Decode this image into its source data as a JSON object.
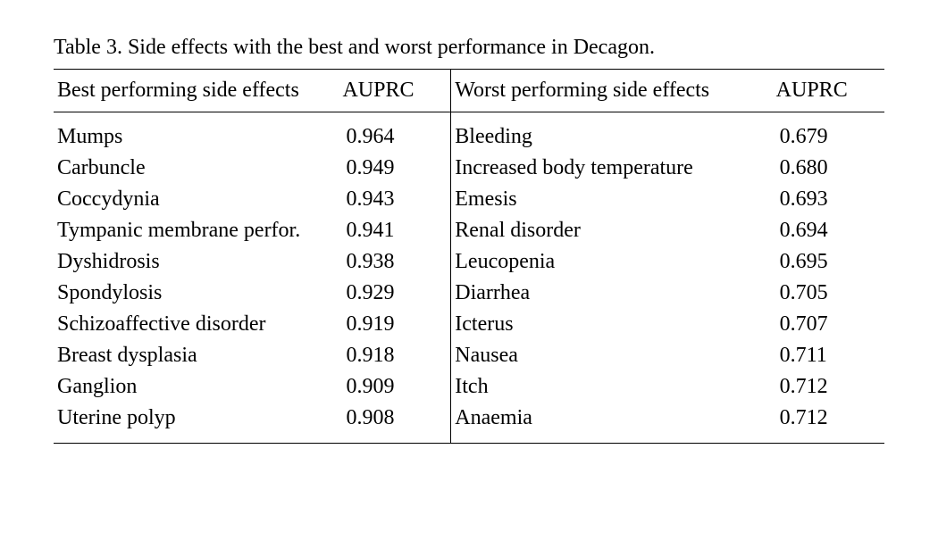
{
  "table": {
    "caption": "Table 3. Side effects with the best and worst performance in Decagon.",
    "headers": {
      "best_label": "Best performing side effects",
      "best_auprc": "AUPRC",
      "worst_label": "Worst performing side effects",
      "worst_auprc": "AUPRC"
    },
    "rows": [
      {
        "best_effect": "Mumps",
        "best_auprc": "0.964",
        "worst_effect": "Bleeding",
        "worst_auprc": "0.679"
      },
      {
        "best_effect": "Carbuncle",
        "best_auprc": "0.949",
        "worst_effect": "Increased body temperature",
        "worst_auprc": "0.680"
      },
      {
        "best_effect": "Coccydynia",
        "best_auprc": "0.943",
        "worst_effect": "Emesis",
        "worst_auprc": "0.693"
      },
      {
        "best_effect": "Tympanic membrane perfor.",
        "best_auprc": "0.941",
        "worst_effect": "Renal disorder",
        "worst_auprc": "0.694"
      },
      {
        "best_effect": "Dyshidrosis",
        "best_auprc": "0.938",
        "worst_effect": "Leucopenia",
        "worst_auprc": "0.695"
      },
      {
        "best_effect": "Spondylosis",
        "best_auprc": "0.929",
        "worst_effect": "Diarrhea",
        "worst_auprc": "0.705"
      },
      {
        "best_effect": "Schizoaffective disorder",
        "best_auprc": "0.919",
        "worst_effect": "Icterus",
        "worst_auprc": "0.707"
      },
      {
        "best_effect": "Breast dysplasia",
        "best_auprc": "0.918",
        "worst_effect": "Nausea",
        "worst_auprc": "0.711"
      },
      {
        "best_effect": "Ganglion",
        "best_auprc": "0.909",
        "worst_effect": "Itch",
        "worst_auprc": "0.712"
      },
      {
        "best_effect": "Uterine polyp",
        "best_auprc": "0.908",
        "worst_effect": "Anaemia",
        "worst_auprc": "0.712"
      }
    ],
    "styling": {
      "font_family": "Times New Roman",
      "font_size_pt": 24,
      "text_color": "#000000",
      "background_color": "#ffffff",
      "rule_color": "#000000",
      "top_rule_width": 1.5,
      "mid_rule_width": 1,
      "bottom_rule_width": 1.5,
      "vertical_divider_width": 1
    }
  }
}
